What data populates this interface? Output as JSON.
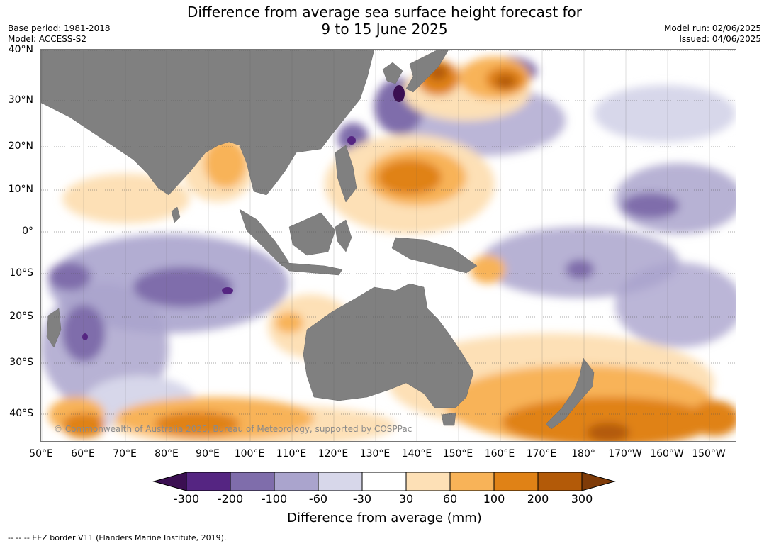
{
  "header": {
    "title_line1": "Difference from average sea surface height forecast for",
    "title_line2": "9 to 15 June 2025",
    "base_period": "Base period: 1981-2018",
    "model": "Model: ACCESS-S2",
    "model_run": "Model run: 02/06/2025",
    "issued": "Issued: 04/06/2025"
  },
  "map": {
    "lat_labels": [
      "40°N",
      "30°N",
      "20°N",
      "10°N",
      "0°",
      "10°S",
      "20°S",
      "30°S",
      "40°S"
    ],
    "lon_labels": [
      "50°E",
      "60°E",
      "70°E",
      "80°E",
      "90°E",
      "100°E",
      "110°E",
      "120°E",
      "130°E",
      "140°E",
      "150°E",
      "160°E",
      "170°E",
      "180°",
      "170°W",
      "160°W",
      "150°W"
    ],
    "copyright": "© Commonwealth of Australia 2025, Bureau of Meteorology, supported by COSPPac",
    "land_color": "#808080"
  },
  "colorbar": {
    "labels": [
      "-300",
      "-200",
      "-100",
      "-60",
      "-30",
      "30",
      "60",
      "100",
      "200",
      "300"
    ],
    "colors": [
      "#3b0f52",
      "#552582",
      "#7f6dab",
      "#aaa4cd",
      "#d7d7ea",
      "#ffffff",
      "#fde0b6",
      "#f8b358",
      "#e08216",
      "#b35a08",
      "#7f3b08"
    ],
    "title": "Difference from average (mm)"
  },
  "footnote": "--  --  -- EEZ border V11 (Flanders Marine Institute, 2019)."
}
